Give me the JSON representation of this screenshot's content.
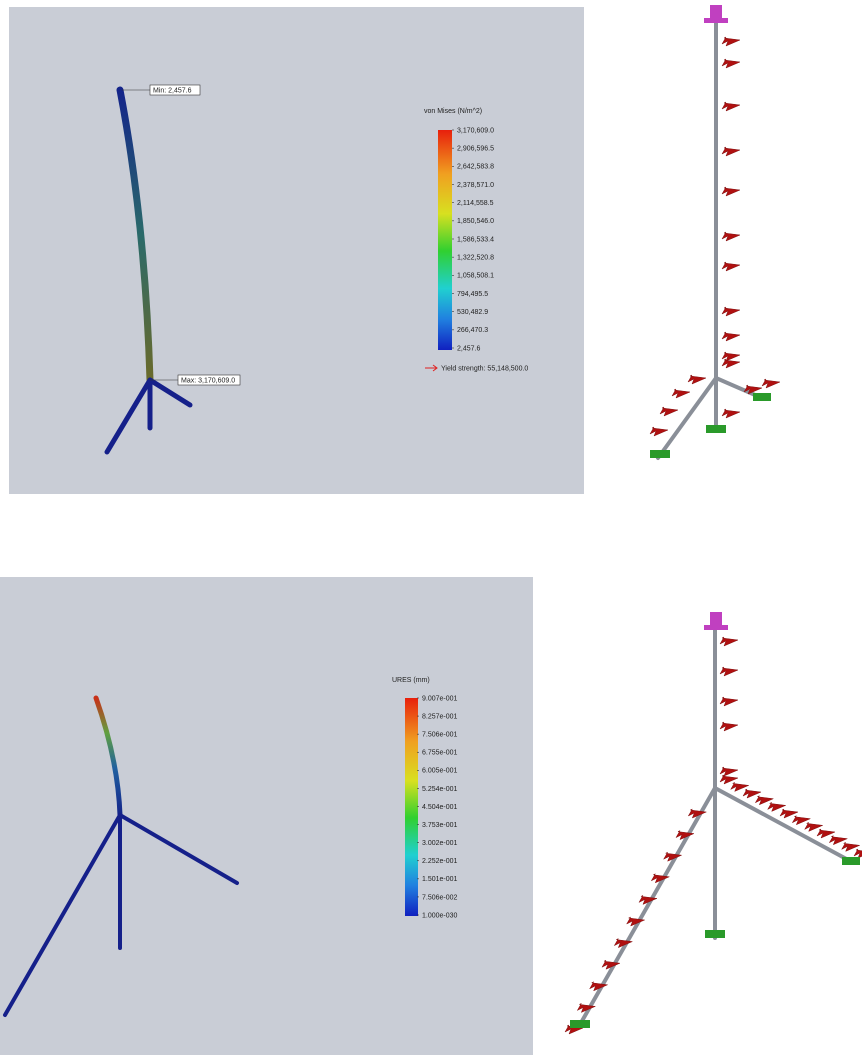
{
  "panels": [
    {
      "legend": {
        "title": "von Mises (N/m^2)",
        "labels": [
          "3,170,609.0",
          "2,906,596.5",
          "2,642,583.8",
          "2,378,571.0",
          "2,114,558.5",
          "1,850,546.0",
          "1,586,533.4",
          "1,322,520.8",
          "1,058,508.1",
          "794,495.5",
          "530,482.9",
          "266,470.3",
          "2,457.6"
        ],
        "note": "Yield strength: 55,148,500.0"
      },
      "min_label": "Min: 2,457.6",
      "max_label": "Max: 3,170,609.0"
    },
    {
      "legend": {
        "title": "URES (mm)",
        "labels": [
          "9.007e-001",
          "8.257e-001",
          "7.506e-001",
          "6.755e-001",
          "6.005e-001",
          "5.254e-001",
          "4.504e-001",
          "3.753e-001",
          "3.002e-001",
          "2.252e-001",
          "1.501e-001",
          "7.506e-002",
          "1.000e-030"
        ]
      }
    }
  ]
}
